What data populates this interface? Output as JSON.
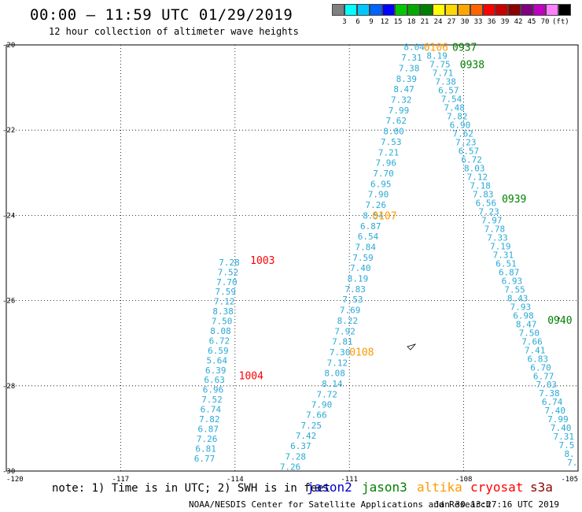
{
  "header": {
    "title": "00:00 – 11:59 UTC 01/29/2019",
    "subtitle": "12 hour collection of altimeter wave heights"
  },
  "colorbar": {
    "colors": [
      "#808080",
      "#00ffff",
      "#00c8ff",
      "#0064ff",
      "#0000ff",
      "#00c800",
      "#00aa00",
      "#008000",
      "#ffff00",
      "#ffd700",
      "#ffa500",
      "#ff6400",
      "#ff0000",
      "#c80000",
      "#8b0000",
      "#800080",
      "#c000c0",
      "#ff80ff",
      "#000000"
    ],
    "labels": [
      "3",
      "6",
      "9",
      "12",
      "15",
      "18",
      "21",
      "24",
      "27",
      "30",
      "33",
      "36",
      "39",
      "42",
      "45",
      "70",
      "(ft)"
    ]
  },
  "axes": {
    "x_ticks": [
      "-120",
      "-117",
      "-114",
      "-111",
      "-108",
      "-105"
    ],
    "y_ticks": [
      "-20",
      "-22",
      "-24",
      "-26",
      "-28",
      "-30"
    ],
    "x_range": [
      -120,
      -105
    ],
    "y_range": [
      -30,
      -20
    ]
  },
  "time_labels": [
    {
      "text": "0106",
      "color": "#ff9900",
      "lon": -109.05,
      "lat": -20.05
    },
    {
      "text": "0937",
      "color": "#008000",
      "lon": -108.3,
      "lat": -20.05
    },
    {
      "text": "0938",
      "color": "#008000",
      "lon": -108.1,
      "lat": -20.45
    },
    {
      "text": "0107",
      "color": "#ff9900",
      "lon": -110.4,
      "lat": -24.0
    },
    {
      "text": "0939",
      "color": "#008000",
      "lon": -107.0,
      "lat": -23.6
    },
    {
      "text": "1003",
      "color": "#ff0000",
      "lon": -113.6,
      "lat": -25.05
    },
    {
      "text": "0940",
      "color": "#008000",
      "lon": -105.8,
      "lat": -26.45
    },
    {
      "text": "0108",
      "color": "#ff9900",
      "lon": -111.0,
      "lat": -27.2
    },
    {
      "text": "1004",
      "color": "#ff0000",
      "lon": -113.9,
      "lat": -27.75
    }
  ],
  "tracks": [
    {
      "name": "track-jason3-descending",
      "color": "#2aa9d6",
      "start": {
        "lon": -109.3,
        "lat": -20.05
      },
      "end": {
        "lon": -111.45,
        "lat": -27.95
      },
      "values": [
        "8.04",
        "7.31",
        "7.38",
        "8.39",
        "8.47",
        "7.32",
        "7.99",
        "7.62",
        "8.00",
        "7.53",
        "7.21",
        "7.96",
        "7.70",
        "6.95",
        "7.90",
        "7.26",
        "8.54",
        "6.87",
        "6.54",
        "7.84",
        "7.59",
        "7.40",
        "8.19",
        "7.83",
        "7.53",
        "7.69",
        "8.22",
        "7.92",
        "7.81",
        "7.30",
        "7.12",
        "8.08",
        "8.14",
        "7.72",
        "7.90",
        "7.66",
        "7.25",
        "7.42",
        "6.37",
        "7.28",
        "7.26"
      ],
      "end2": {
        "lon": -112.55,
        "lat": -29.9
      }
    },
    {
      "name": "track-east-descending",
      "color": "#2aa9d6",
      "start": {
        "lon": -108.7,
        "lat": -20.25
      },
      "end": {
        "lon": -105.15,
        "lat": -29.8
      },
      "values": [
        "8.19",
        "7.75",
        "7.71",
        "7.38",
        "6.57",
        "7.54",
        "7.48",
        "7.82",
        "6.90",
        "7.62",
        "7.23",
        "6.57",
        "6.72",
        "8.03",
        "7.12",
        "7.18",
        "7.83",
        "6.56",
        "7.23",
        "7.97",
        "7.78",
        "7.33",
        "7.19",
        "7.31",
        "6.51",
        "6.87",
        "6.93",
        "7.55",
        "8.43",
        "7.93",
        "6.98",
        "8.47",
        "7.50",
        "7.66",
        "7.41",
        "6.83",
        "6.70",
        "6.77",
        "7.03",
        "7.38",
        "6.74",
        "7.40",
        "7.99",
        "7.40",
        "7.31",
        "7.5",
        "8.",
        "7."
      ]
    },
    {
      "name": "track-cryosat",
      "color": "#2aa9d6",
      "start": {
        "lon": -114.15,
        "lat": -25.1
      },
      "end": {
        "lon": -114.8,
        "lat": -29.7
      },
      "values": [
        "7.28",
        "7.52",
        "7.70",
        "7.59",
        "7.12",
        "8.38",
        "7.50",
        "8.08",
        "6.72",
        "6.59",
        "5.64",
        "6.39",
        "6.63",
        "6.96",
        "7.52",
        "6.74",
        "7.82",
        "6.87",
        "7.26",
        "6.81",
        "6.77"
      ]
    }
  ],
  "note": "note: 1) Time is in UTC; 2) SWH is in feet",
  "satellites": [
    {
      "name": "jason2",
      "color": "#0000cc"
    },
    {
      "name": "jason3",
      "color": "#008000"
    },
    {
      "name": "altika",
      "color": "#ff9900"
    },
    {
      "name": "cryosat",
      "color": "#ff0000"
    },
    {
      "name": "s3a",
      "color": "#8b0000"
    }
  ],
  "credit": "NOAA/NESDIS Center for Satellite Applications and Research",
  "timestamp": "Jan 30 13:27:16 UTC 2019"
}
